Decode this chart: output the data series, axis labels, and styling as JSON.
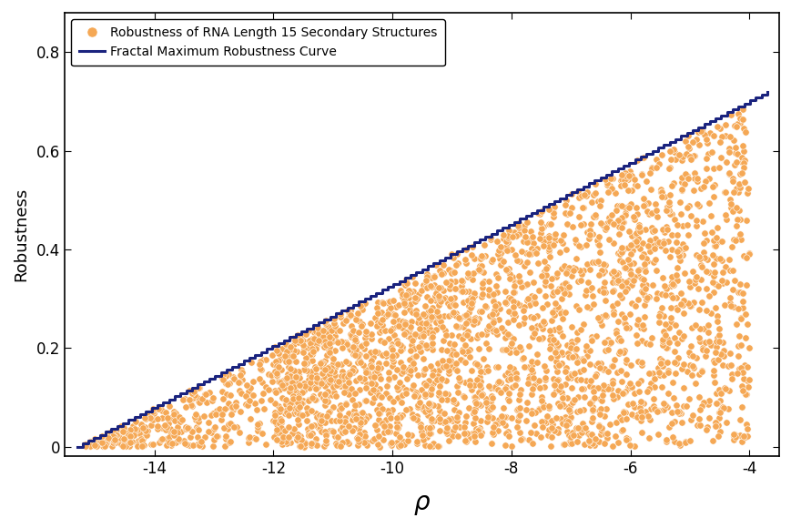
{
  "title": "",
  "xlabel": "ρ",
  "ylabel": "Robustness",
  "xlim": [
    -15.5,
    -3.5
  ],
  "ylim": [
    -0.02,
    0.88
  ],
  "xticks": [
    -14,
    -12,
    -10,
    -8,
    -6,
    -4
  ],
  "yticks": [
    0.0,
    0.2,
    0.4,
    0.6,
    0.8
  ],
  "scatter_color": "#F5A855",
  "scatter_edge_color": "#FFFFFF",
  "line_color": "#1A237E",
  "legend_label_scatter": "Robustness of RNA Length 15 Secondary Structures",
  "legend_label_line": "Fractal Maximum Robustness Curve",
  "background_color": "#FFFFFF",
  "scatter_size": 28,
  "scatter_alpha": 1.0,
  "line_width": 2.2,
  "n_scatter": 3000
}
